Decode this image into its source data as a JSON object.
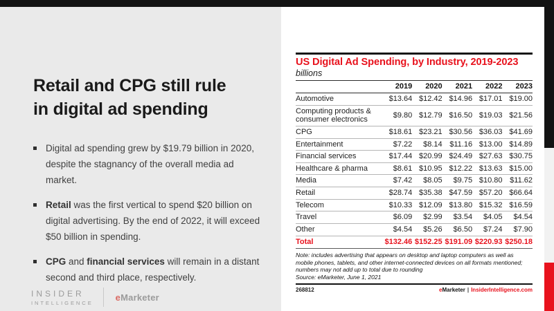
{
  "colors": {
    "accent_red": "#e8121d",
    "bar_black": "#131313",
    "slide_bg": "#eaeaea",
    "card_bg": "#ffffff",
    "logo_e_red": "#d96a64"
  },
  "slide": {
    "title": "Retail and CPG still rule\nin digital ad spending",
    "bullets": [
      {
        "segments": [
          {
            "text": "Digital ad spending grew by $19.79 billion in 2020, despite the stagnancy of the overall media ad market.",
            "bold": false
          }
        ]
      },
      {
        "segments": [
          {
            "text": "Retail",
            "bold": true
          },
          {
            "text": " was the first vertical to spend $20 billion on digital advertising. By the end of 2022, it will exceed $50 billion in spending.",
            "bold": false
          }
        ]
      },
      {
        "segments": [
          {
            "text": "CPG",
            "bold": true
          },
          {
            "text": " and ",
            "bold": false
          },
          {
            "text": "financial services",
            "bold": true
          },
          {
            "text": " will remain in a distant second and third place, respectively.",
            "bold": false
          }
        ]
      }
    ],
    "logo": {
      "line1": "INSIDER",
      "line2": "INTELLIGENCE",
      "brand_e": "e",
      "brand_rest": "Marketer"
    }
  },
  "chart": {
    "title": "US Digital Ad Spending, by Industry, 2019-2023",
    "subtitle": "billions",
    "note": "Note: includes advertising that appears on desktop and laptop computers as well as mobile phones, tablets, and other internet-connected devices on all formats mentioned; numbers may not add up to total due to rounding",
    "source": "Source: eMarketer, June 1, 2021",
    "chart_id": "268812",
    "footer_brand_e": "e",
    "footer_brand_rest": "Marketer",
    "footer_sep": "|",
    "footer_site": "InsiderIntelligence.com"
  },
  "chart_data": {
    "type": "table",
    "title": "US Digital Ad Spending, by Industry, 2019-2023",
    "unit": "billions",
    "columns": [
      "2019",
      "2020",
      "2021",
      "2022",
      "2023"
    ],
    "rows": [
      {
        "label": "Automotive",
        "values": [
          "$13.64",
          "$12.42",
          "$14.96",
          "$17.01",
          "$19.00"
        ]
      },
      {
        "label": "Computing products & consumer electronics",
        "values": [
          "$9.80",
          "$12.79",
          "$16.50",
          "$19.03",
          "$21.56"
        ]
      },
      {
        "label": "CPG",
        "values": [
          "$18.61",
          "$23.21",
          "$30.56",
          "$36.03",
          "$41.69"
        ]
      },
      {
        "label": "Entertainment",
        "values": [
          "$7.22",
          "$8.14",
          "$11.16",
          "$13.00",
          "$14.89"
        ]
      },
      {
        "label": "Financial services",
        "values": [
          "$17.44",
          "$20.99",
          "$24.49",
          "$27.63",
          "$30.75"
        ]
      },
      {
        "label": "Healthcare & pharma",
        "values": [
          "$8.61",
          "$10.95",
          "$12.22",
          "$13.63",
          "$15.00"
        ]
      },
      {
        "label": "Media",
        "values": [
          "$7.42",
          "$8.05",
          "$9.75",
          "$10.80",
          "$11.62"
        ]
      },
      {
        "label": "Retail",
        "values": [
          "$28.74",
          "$35.38",
          "$47.59",
          "$57.20",
          "$66.64"
        ]
      },
      {
        "label": "Telecom",
        "values": [
          "$10.33",
          "$12.09",
          "$13.80",
          "$15.32",
          "$16.59"
        ]
      },
      {
        "label": "Travel",
        "values": [
          "$6.09",
          "$2.99",
          "$3.54",
          "$4.05",
          "$4.54"
        ]
      },
      {
        "label": "Other",
        "values": [
          "$4.54",
          "$5.26",
          "$6.50",
          "$7.24",
          "$7.90"
        ]
      }
    ],
    "total_row": {
      "label": "Total",
      "values": [
        "$132.46",
        "$152.25",
        "$191.09",
        "$220.93",
        "$250.18"
      ]
    }
  }
}
